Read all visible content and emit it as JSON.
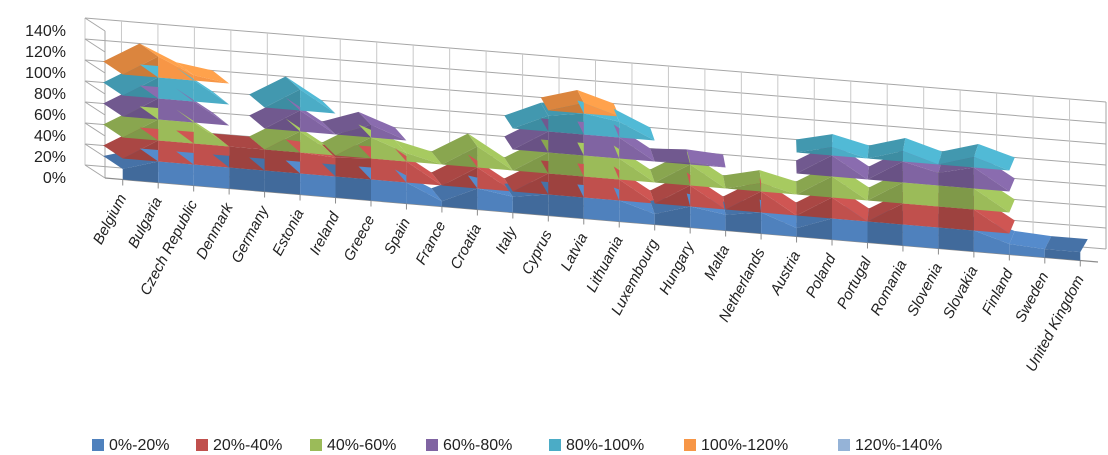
{
  "chart_data": {
    "type": "area",
    "categories": [
      "Belgium",
      "Bulgaria",
      "Czech Republic",
      "Denmark",
      "Germany",
      "Estonia",
      "Ireland",
      "Greece",
      "Spain",
      "France",
      "Croatia",
      "Italy",
      "Cyprus",
      "Latvia",
      "Lithuania",
      "Luxembourg",
      "Hungary",
      "Malta",
      "Netherlands",
      "Austria",
      "Poland",
      "Portugal",
      "Romania",
      "Slovenia",
      "Slovakia",
      "Finland",
      "Sweden",
      "United Kingdom"
    ],
    "values": [
      10,
      120,
      105,
      40,
      40,
      100,
      38,
      72,
      48,
      5,
      60,
      15,
      95,
      110,
      95,
      10,
      62,
      15,
      48,
      8,
      88,
      20,
      90,
      72,
      90,
      10,
      8,
      8
    ],
    "y_ticks": [
      "0%",
      "20%",
      "40%",
      "60%",
      "80%",
      "100%",
      "120%",
      "140%"
    ],
    "ylim": [
      0,
      140
    ],
    "grid": true,
    "legend": {
      "position": "bottom",
      "entries": [
        {
          "label": "0%-20%",
          "color": "#4f81bd"
        },
        {
          "label": "20%-40%",
          "color": "#c0504d"
        },
        {
          "label": "40%-60%",
          "color": "#9bbb59"
        },
        {
          "label": "60%-80%",
          "color": "#8064a2"
        },
        {
          "label": "80%-100%",
          "color": "#4bacc6"
        },
        {
          "label": "100%-120%",
          "color": "#f79646"
        },
        {
          "label": "120%-140%",
          "color": "#95b3d7"
        }
      ]
    }
  }
}
